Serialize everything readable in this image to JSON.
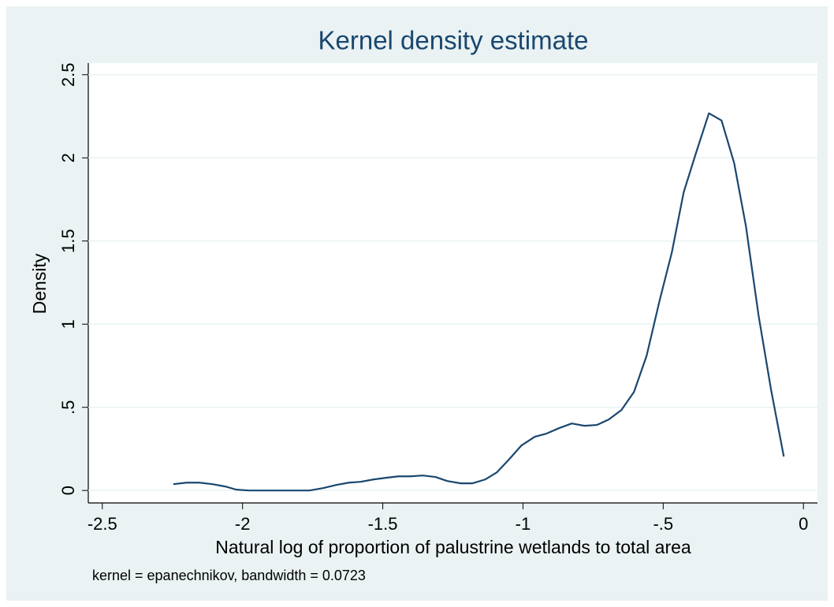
{
  "chart_data": {
    "type": "line",
    "title": "Kernel density estimate",
    "x_label": "Natural log of proportion of palustrine wetlands to total area",
    "y_label": "Density",
    "note": "kernel = epanechnikov, bandwidth = 0.0723",
    "x": [
      -2.247,
      -2.199,
      -2.154,
      -2.107,
      -2.062,
      -2.022,
      -1.978,
      -1.882,
      -1.761,
      -1.713,
      -1.666,
      -1.621,
      -1.579,
      -1.534,
      -1.489,
      -1.444,
      -1.402,
      -1.357,
      -1.312,
      -1.27,
      -1.222,
      -1.18,
      -1.135,
      -1.093,
      -1.048,
      -1.006,
      -0.958,
      -0.916,
      -0.871,
      -0.826,
      -0.781,
      -0.736,
      -0.694,
      -0.649,
      -0.604,
      -0.559,
      -0.514,
      -0.469,
      -0.427,
      -0.382,
      -0.337,
      -0.292,
      -0.247,
      -0.205,
      -0.16,
      -0.115,
      -0.07
    ],
    "series": [
      {
        "name": "Density",
        "color": "#1a476f",
        "values": [
          0.038,
          0.047,
          0.047,
          0.038,
          0.024,
          0.005,
          0,
          0,
          0,
          0.014,
          0.033,
          0.047,
          0.052,
          0.066,
          0.076,
          0.085,
          0.085,
          0.09,
          0.081,
          0.057,
          0.043,
          0.043,
          0.066,
          0.109,
          0.19,
          0.27,
          0.323,
          0.342,
          0.375,
          0.403,
          0.389,
          0.394,
          0.427,
          0.484,
          0.593,
          0.811,
          1.134,
          1.433,
          1.793,
          2.035,
          2.268,
          2.225,
          1.969,
          1.589,
          1.053,
          0.602,
          0.204
        ]
      }
    ],
    "xlim": [
      -2.55,
      0.05
    ],
    "ylim": [
      -0.075,
      2.57
    ],
    "xticks": [
      -2.5,
      -2,
      -1.5,
      -1,
      {
        "value": -0.5,
        "label": "-.5"
      },
      0
    ],
    "yticks": [
      0,
      {
        "value": 0.5,
        "label": ".5"
      },
      1,
      1.5,
      2,
      2.5
    ],
    "grid": true
  }
}
